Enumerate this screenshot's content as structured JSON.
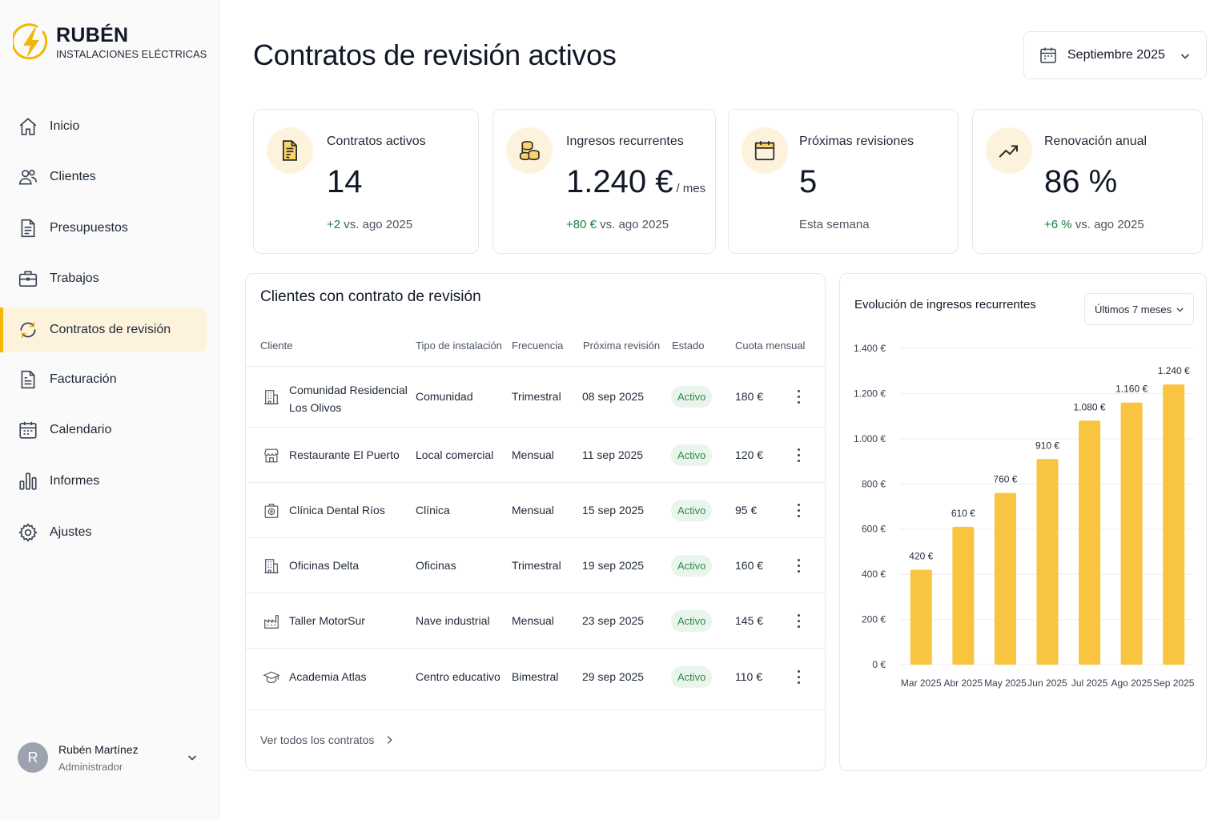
{
  "brand": {
    "name": "RUBÉN",
    "subtitle": "INSTALACIONES ELÉCTRICAS"
  },
  "nav": [
    {
      "label": "Inicio",
      "icon": "home-icon",
      "active": false
    },
    {
      "label": "Clientes",
      "icon": "users-icon",
      "active": false
    },
    {
      "label": "Presupuestos",
      "icon": "document-icon",
      "active": false
    },
    {
      "label": "Trabajos",
      "icon": "briefcase-icon",
      "active": false
    },
    {
      "label": "Contratos de revisión",
      "icon": "refresh-icon",
      "active": true
    },
    {
      "label": "Facturación",
      "icon": "invoice-icon",
      "active": false
    },
    {
      "label": "Calendario",
      "icon": "calendar-icon",
      "active": false
    },
    {
      "label": "Informes",
      "icon": "bar-chart-icon",
      "active": false
    },
    {
      "label": "Ajustes",
      "icon": "gear-icon",
      "active": false
    }
  ],
  "user": {
    "initial": "R",
    "name": "Rubén Martínez",
    "role": "Administrador"
  },
  "header": {
    "title": "Contratos de revisión activos",
    "month": "Septiembre 2025"
  },
  "kpis": [
    {
      "label": "Contratos activos",
      "value": "14",
      "unit": "",
      "delta": "+2",
      "rest": " vs. ago 2025",
      "icon": "contract-icon"
    },
    {
      "label": "Ingresos recurrentes",
      "value": "1.240 €",
      "unit": "/ mes",
      "delta": "+80 €",
      "rest": " vs. ago 2025",
      "icon": "coins-icon"
    },
    {
      "label": "Próximas revisiones",
      "value": "5",
      "unit": "",
      "delta": "",
      "rest": "Esta semana",
      "icon": "calendar-icon"
    },
    {
      "label": "Renovación anual",
      "value": "86 %",
      "unit": "",
      "delta": "+6 %",
      "rest": " vs. ago 2025",
      "icon": "trend-up-icon"
    }
  ],
  "table": {
    "title": "Clientes con contrato de revisión",
    "columns": [
      "Cliente",
      "Tipo de instalación",
      "Frecuencia",
      "Próxima revisión",
      "Estado",
      "Cuota mensual"
    ],
    "rows": [
      {
        "client": "Comunidad Residencial",
        "client2": "Los Olivos",
        "type": "Comunidad",
        "freq": "Trimestral",
        "next": "08 sep 2025",
        "status": "Activo",
        "fee": "180 €",
        "icon": "building-icon"
      },
      {
        "client": "Restaurante El Puerto",
        "client2": "",
        "type": "Local comercial",
        "freq": "Mensual",
        "next": "11 sep 2025",
        "status": "Activo",
        "fee": "120 €",
        "icon": "store-icon"
      },
      {
        "client": "Clínica Dental Ríos",
        "client2": "",
        "type": "Clínica",
        "freq": "Mensual",
        "next": "15 sep 2025",
        "status": "Activo",
        "fee": "95 €",
        "icon": "clinic-icon"
      },
      {
        "client": "Oficinas Delta",
        "client2": "",
        "type": "Oficinas",
        "freq": "Trimestral",
        "next": "19 sep 2025",
        "status": "Activo",
        "fee": "160 €",
        "icon": "building-icon"
      },
      {
        "client": "Taller MotorSur",
        "client2": "",
        "type": "Nave industrial",
        "freq": "Mensual",
        "next": "23 sep 2025",
        "status": "Activo",
        "fee": "145 €",
        "icon": "factory-icon"
      },
      {
        "client": "Academia Atlas",
        "client2": "",
        "type": "Centro educativo",
        "freq": "Bimestral",
        "next": "29 sep 2025",
        "status": "Activo",
        "fee": "110 €",
        "icon": "graduation-cap-icon"
      }
    ],
    "see_all": "Ver todos los contratos"
  },
  "chart": {
    "range": "Últimos 7 meses",
    "bar_color": "#f9c440"
  },
  "chart_data": {
    "type": "bar",
    "title": "Evolución de ingresos recurrentes",
    "categories": [
      "Mar 2025",
      "Abr 2025",
      "May 2025",
      "Jun 2025",
      "Jul 2025",
      "Ago 2025",
      "Sep 2025"
    ],
    "values": [
      420,
      610,
      760,
      910,
      1080,
      1160,
      1240
    ],
    "value_labels": [
      "420 €",
      "610 €",
      "760 €",
      "910 €",
      "1.080 €",
      "1.160 €",
      "1.240 €"
    ],
    "ylim": [
      0,
      1400
    ],
    "yticks": [
      0,
      200,
      400,
      600,
      800,
      1000,
      1200,
      1400
    ],
    "ytick_labels": [
      "0 €",
      "200 €",
      "400 €",
      "600 €",
      "800 €",
      "1.000 €",
      "1.200 €",
      "1.400 €"
    ],
    "grid": true
  }
}
